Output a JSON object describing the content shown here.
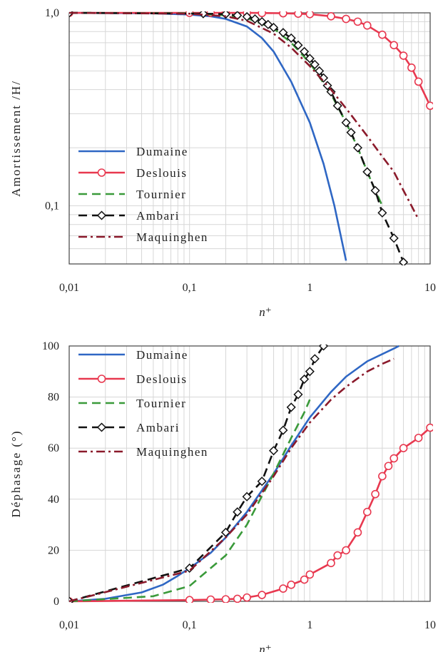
{
  "chart_data": [
    {
      "type": "line",
      "xlabel": "n⁺",
      "ylabel": "Amortissement /H/",
      "xscale": "log",
      "yscale": "log",
      "xlim": [
        0.01,
        10
      ],
      "ylim": [
        0.05,
        1.0
      ],
      "xticks": [
        {
          "value": 0.01,
          "label": "0,01"
        },
        {
          "value": 0.1,
          "label": "0,1"
        },
        {
          "value": 1,
          "label": "1"
        },
        {
          "value": 10,
          "label": "10"
        }
      ],
      "yticks": [
        {
          "value": 1.0,
          "label": "1,0"
        },
        {
          "value": 0.1,
          "label": "0,1"
        }
      ],
      "grid": true,
      "legend_position": "bottom-left",
      "series": [
        {
          "name": "Dumaine",
          "color": "#2f67c4",
          "style": "solid",
          "marker": "none",
          "x": [
            0.01,
            0.05,
            0.1,
            0.15,
            0.2,
            0.3,
            0.4,
            0.5,
            0.7,
            1.0,
            1.3,
            1.6,
            2.0
          ],
          "y": [
            1.0,
            0.995,
            0.98,
            0.96,
            0.93,
            0.85,
            0.74,
            0.63,
            0.44,
            0.27,
            0.165,
            0.1,
            0.052
          ]
        },
        {
          "name": "Deslouis",
          "color": "#e8384f",
          "style": "solid",
          "marker": "circle",
          "x": [
            0.01,
            0.1,
            0.15,
            0.2,
            0.3,
            0.4,
            0.6,
            0.8,
            1.0,
            1.5,
            2.0,
            2.5,
            3.0,
            4.0,
            5.0,
            6.0,
            7.0,
            8.0,
            10.0
          ],
          "y": [
            1.0,
            1.0,
            1.0,
            1.0,
            1.0,
            0.998,
            0.995,
            0.99,
            0.985,
            0.96,
            0.93,
            0.9,
            0.86,
            0.77,
            0.68,
            0.6,
            0.52,
            0.44,
            0.33
          ]
        },
        {
          "name": "Tournier",
          "color": "#3a9a3a",
          "style": "dashed",
          "marker": "none",
          "x": [
            0.01,
            0.1,
            0.2,
            0.3,
            0.5,
            0.7,
            1.0,
            1.5,
            2.0,
            2.5,
            3.0,
            3.5,
            4.0
          ],
          "y": [
            1.0,
            0.995,
            0.97,
            0.94,
            0.83,
            0.7,
            0.55,
            0.38,
            0.27,
            0.2,
            0.15,
            0.12,
            0.1
          ]
        },
        {
          "name": "Ambari",
          "color": "#111111",
          "style": "dashed",
          "marker": "diamond",
          "x": [
            0.01,
            0.13,
            0.2,
            0.25,
            0.3,
            0.35,
            0.4,
            0.45,
            0.5,
            0.6,
            0.7,
            0.8,
            0.9,
            1.0,
            1.1,
            1.2,
            1.3,
            1.4,
            1.5,
            1.7,
            2.0,
            2.2,
            2.5,
            3.0,
            3.5,
            4.0,
            5.0,
            6.0
          ],
          "y": [
            1.0,
            0.99,
            0.985,
            0.97,
            0.955,
            0.93,
            0.9,
            0.87,
            0.84,
            0.79,
            0.74,
            0.68,
            0.63,
            0.58,
            0.54,
            0.5,
            0.46,
            0.42,
            0.39,
            0.33,
            0.27,
            0.24,
            0.2,
            0.15,
            0.12,
            0.092,
            0.068,
            0.051
          ]
        },
        {
          "name": "Maquinghen",
          "color": "#8b1a2b",
          "style": "dashdot",
          "marker": "none",
          "x": [
            0.01,
            0.1,
            0.2,
            0.3,
            0.5,
            0.7,
            1.0,
            1.5,
            2.0,
            3.0,
            4.0,
            5.0,
            6.0,
            7.0,
            8.0
          ],
          "y": [
            1.0,
            0.99,
            0.96,
            0.91,
            0.78,
            0.66,
            0.53,
            0.4,
            0.32,
            0.23,
            0.18,
            0.15,
            0.12,
            0.1,
            0.085
          ]
        }
      ]
    },
    {
      "type": "line",
      "xlabel": "n⁺",
      "ylabel": "Déphasage (°)",
      "xscale": "log",
      "yscale": "linear",
      "xlim": [
        0.01,
        10
      ],
      "ylim": [
        0,
        100
      ],
      "xticks": [
        {
          "value": 0.01,
          "label": "0,01"
        },
        {
          "value": 0.1,
          "label": "0,1"
        },
        {
          "value": 1,
          "label": "1"
        },
        {
          "value": 10,
          "label": "10"
        }
      ],
      "yticks": [
        {
          "value": 0,
          "label": "0"
        },
        {
          "value": 20,
          "label": "20"
        },
        {
          "value": 40,
          "label": "40"
        },
        {
          "value": 60,
          "label": "60"
        },
        {
          "value": 80,
          "label": "80"
        },
        {
          "value": 100,
          "label": "100"
        }
      ],
      "grid": true,
      "legend_position": "top-left",
      "series": [
        {
          "name": "Dumaine",
          "color": "#2f67c4",
          "style": "solid",
          "marker": "none",
          "x": [
            0.01,
            0.02,
            0.04,
            0.06,
            0.08,
            0.1,
            0.15,
            0.2,
            0.3,
            0.5,
            0.7,
            1.0,
            1.5,
            2.0,
            3.0,
            5.0,
            5.5
          ],
          "y": [
            0,
            1,
            3.5,
            6.5,
            10,
            13,
            19,
            25,
            35,
            50,
            61,
            72,
            82,
            88,
            94,
            99,
            100
          ]
        },
        {
          "name": "Deslouis",
          "color": "#e8384f",
          "style": "solid",
          "marker": "circle",
          "x": [
            0.01,
            0.1,
            0.15,
            0.2,
            0.25,
            0.3,
            0.4,
            0.6,
            0.7,
            0.9,
            1.0,
            1.5,
            1.7,
            2.0,
            2.5,
            3.0,
            3.5,
            4.0,
            4.5,
            5.0,
            6.0,
            8.0,
            10.0
          ],
          "y": [
            0,
            0.5,
            0.7,
            0.8,
            1,
            1.5,
            2.5,
            5,
            6.5,
            8.5,
            10.5,
            15,
            18,
            20,
            27,
            35,
            42,
            49,
            53,
            56,
            60,
            64,
            68
          ]
        },
        {
          "name": "Tournier",
          "color": "#3a9a3a",
          "style": "dashed",
          "marker": "none",
          "x": [
            0.01,
            0.05,
            0.1,
            0.2,
            0.3,
            0.5,
            0.7,
            0.9,
            1.0
          ],
          "y": [
            0,
            2,
            6,
            18,
            30,
            50,
            64,
            74,
            79
          ]
        },
        {
          "name": "Ambari",
          "color": "#111111",
          "style": "dashed",
          "marker": "diamond",
          "x": [
            0.01,
            0.1,
            0.2,
            0.25,
            0.3,
            0.4,
            0.5,
            0.6,
            0.7,
            0.8,
            0.9,
            1.0,
            1.1,
            1.3
          ],
          "y": [
            0,
            13,
            27,
            35,
            41,
            47,
            59,
            67,
            76,
            81,
            87,
            90,
            95,
            100
          ]
        },
        {
          "name": "Maquinghen",
          "color": "#8b1a2b",
          "style": "dashdot",
          "marker": "none",
          "x": [
            0.01,
            0.1,
            0.2,
            0.3,
            0.5,
            0.7,
            1.0,
            1.5,
            2.0,
            3.0,
            4.0,
            5.0
          ],
          "y": [
            0,
            12,
            25,
            34,
            49,
            60,
            70,
            79,
            84,
            90,
            93,
            95
          ]
        }
      ]
    }
  ]
}
